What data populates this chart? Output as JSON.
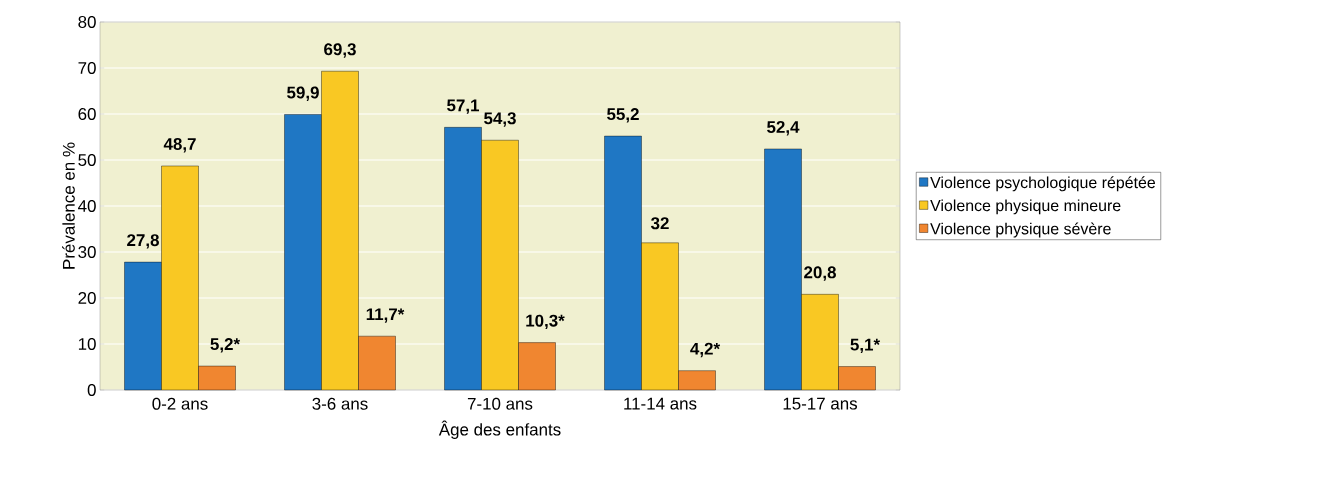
{
  "chart_data": {
    "type": "bar",
    "xlabel": "Âge des enfants",
    "ylabel": "Prévalence en %",
    "categories": [
      "0-2 ans",
      "3-6 ans",
      "7-10 ans",
      "11-14 ans",
      "15-17 ans"
    ],
    "series": [
      {
        "name": "Violence psychologique répétée",
        "color": "#1f77c4",
        "values": [
          27.8,
          59.9,
          57.1,
          55.2,
          52.4
        ],
        "value_labels": [
          "27,8",
          "59,9",
          "57,1",
          "55,2",
          "52,4"
        ]
      },
      {
        "name": "Violence physique mineure",
        "color": "#f9c823",
        "values": [
          48.7,
          69.3,
          54.3,
          32,
          20.8
        ],
        "value_labels": [
          "48,7",
          "69,3",
          "54,3",
          "32",
          "20,8"
        ]
      },
      {
        "name": "Violence physique sévère",
        "color": "#f08630",
        "values": [
          5.2,
          11.7,
          10.3,
          4.2,
          5.1
        ],
        "value_labels": [
          "5,2*",
          "11,7*",
          "10,3*",
          "4,2*",
          "5,1*"
        ]
      }
    ],
    "ylim": [
      0,
      80
    ],
    "yticks": [
      0,
      10,
      20,
      30,
      40,
      50,
      60,
      70,
      80
    ],
    "grid": "y",
    "legend": "right"
  }
}
